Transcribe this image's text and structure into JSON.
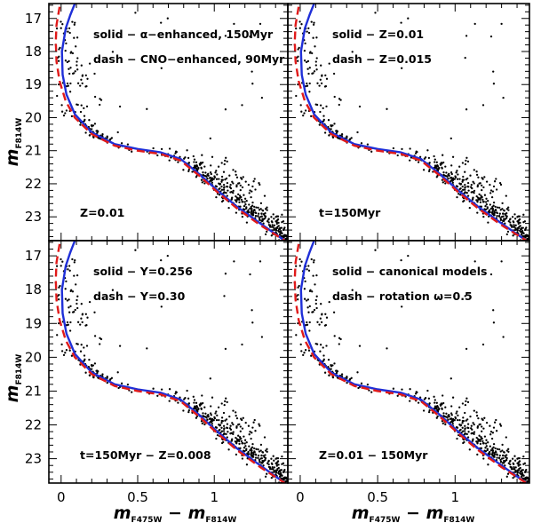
{
  "chart_data": {
    "type": "scatter",
    "layout": "2x2 grid of panels with shared axes",
    "xlabel": {
      "main": "m",
      "sub1": "F475W",
      "dash": " − ",
      "main2": "m",
      "sub2": "F814W"
    },
    "ylabel": {
      "main": "m",
      "sub": "F814W"
    },
    "xlim": [
      -0.08,
      1.48
    ],
    "ylim": [
      23.72,
      16.55
    ],
    "y_inverted": true,
    "xticks": [
      "0",
      "0.5",
      "1"
    ],
    "xtick_values": [
      0,
      0.5,
      1
    ],
    "yticks": [
      "17",
      "18",
      "19",
      "20",
      "21",
      "22",
      "23"
    ],
    "ytick_values": [
      17,
      18,
      19,
      20,
      21,
      22,
      23
    ],
    "grid": false,
    "colors": {
      "stars": "#000000",
      "solid": "#1f2fd8",
      "dash": "#e01a1a"
    },
    "panels": [
      {
        "id": "top-left",
        "annotations": [
          {
            "text": "solid − α−enhanced, 150Myr",
            "pos": "top-left"
          },
          {
            "text": "dash − CNO−enhanced, 90Myr",
            "pos": "top-left-2"
          },
          {
            "text": "Z=0.01",
            "pos": "bottom-left"
          }
        ]
      },
      {
        "id": "top-right",
        "annotations": [
          {
            "text": "solid − Z=0.01",
            "pos": "top-left"
          },
          {
            "text": "dash − Z=0.015",
            "pos": "top-left-2"
          },
          {
            "text": "t=150Myr",
            "pos": "bottom-left"
          }
        ]
      },
      {
        "id": "bottom-left",
        "annotations": [
          {
            "text": "solid − Y=0.256",
            "pos": "top-left"
          },
          {
            "text": "dash − Y=0.30",
            "pos": "top-left-2"
          },
          {
            "text": "t=150Myr − Z=0.008",
            "pos": "bottom-left"
          }
        ]
      },
      {
        "id": "bottom-right",
        "annotations": [
          {
            "text": "solid − canonical models",
            "pos": "top-left"
          },
          {
            "text": "dash − rotation ω=0.5",
            "pos": "top-left-2"
          },
          {
            "text": "Z=0.01 − 150Myr",
            "pos": "bottom-left"
          }
        ]
      }
    ],
    "stars": {
      "description": "same observed CMD in every panel",
      "ridge": [
        [
          0.0,
          17.0
        ],
        [
          0.005,
          18.0
        ],
        [
          0.03,
          19.0
        ],
        [
          0.08,
          19.8
        ],
        [
          0.2,
          20.5
        ],
        [
          0.4,
          20.9
        ],
        [
          0.6,
          21.05
        ],
        [
          0.8,
          21.35
        ],
        [
          0.95,
          21.9
        ],
        [
          1.1,
          22.5
        ],
        [
          1.3,
          23.1
        ],
        [
          1.45,
          23.65
        ]
      ],
      "count": 620
    },
    "series": [
      {
        "line": "solid",
        "points": [
          [
            0.09,
            16.55
          ],
          [
            0.06,
            16.9
          ],
          [
            0.03,
            17.3
          ],
          [
            0.005,
            18.0
          ],
          [
            0.01,
            18.7
          ],
          [
            0.035,
            19.3
          ],
          [
            0.09,
            19.9
          ],
          [
            0.2,
            20.45
          ],
          [
            0.35,
            20.8
          ],
          [
            0.5,
            20.95
          ],
          [
            0.65,
            21.05
          ],
          [
            0.78,
            21.25
          ],
          [
            0.9,
            21.7
          ],
          [
            1.02,
            22.2
          ],
          [
            1.15,
            22.7
          ],
          [
            1.3,
            23.2
          ],
          [
            1.46,
            23.72
          ]
        ]
      },
      {
        "line": "dash",
        "points": [
          [
            -0.01,
            16.65
          ],
          [
            -0.03,
            17.2
          ],
          [
            -0.035,
            17.7
          ],
          [
            -0.03,
            18.3
          ],
          [
            -0.01,
            18.9
          ],
          [
            0.03,
            19.5
          ],
          [
            0.09,
            20.0
          ],
          [
            0.2,
            20.5
          ],
          [
            0.35,
            20.85
          ],
          [
            0.5,
            21.0
          ],
          [
            0.65,
            21.1
          ],
          [
            0.78,
            21.3
          ],
          [
            0.9,
            21.75
          ],
          [
            1.02,
            22.25
          ],
          [
            1.15,
            22.75
          ],
          [
            1.3,
            23.25
          ],
          [
            1.46,
            23.72
          ]
        ]
      }
    ]
  }
}
